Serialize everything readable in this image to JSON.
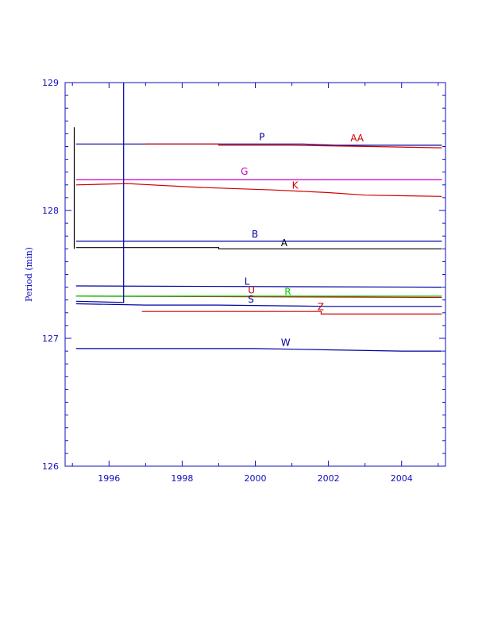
{
  "chart_data": {
    "type": "line",
    "title": "",
    "xlabel": "",
    "ylabel": "Period (min)",
    "xlim": [
      1994.8,
      2005.2
    ],
    "ylim": [
      126,
      129
    ],
    "x_ticks": [
      "1996",
      "1998",
      "2000",
      "2002",
      "2004"
    ],
    "y_ticks": [
      "126",
      "127",
      "128",
      "129"
    ],
    "grid": false,
    "legend": "none",
    "axis_color": "#1010c0",
    "series": [
      {
        "name": "P",
        "color": "#0000a0",
        "points": [
          [
            1995.1,
            128.52
          ],
          [
            2001.3,
            128.52
          ],
          [
            2002.2,
            128.51
          ],
          [
            2005.1,
            128.51
          ]
        ],
        "label_at": [
          2000.1,
          128.55
        ]
      },
      {
        "name": "AA",
        "color": "#d00000",
        "points": [
          [
            1997.0,
            128.52
          ],
          [
            1999.0,
            128.52
          ],
          [
            1999.0,
            128.51
          ],
          [
            2001.0,
            128.51
          ],
          [
            2003.2,
            128.5
          ],
          [
            2005.1,
            128.49
          ]
        ],
        "label_at": [
          2002.6,
          128.54
        ]
      },
      {
        "name": "G",
        "color": "#cc00cc",
        "points": [
          [
            1995.1,
            128.24
          ],
          [
            2005.1,
            128.24
          ]
        ],
        "label_at": [
          1999.6,
          128.28
        ]
      },
      {
        "name": "K",
        "color": "#d00000",
        "points": [
          [
            1995.1,
            128.2
          ],
          [
            1996.5,
            128.21
          ],
          [
            1998.5,
            128.18
          ],
          [
            2000.5,
            128.16
          ],
          [
            2002.0,
            128.14
          ],
          [
            2003.0,
            128.12
          ],
          [
            2005.1,
            128.11
          ]
        ],
        "label_at": [
          2001.0,
          128.17
        ]
      },
      {
        "name": "B",
        "color": "#0000a0",
        "points": [
          [
            1995.1,
            127.76
          ],
          [
            2005.1,
            127.76
          ]
        ],
        "label_at": [
          1999.9,
          127.79
        ]
      },
      {
        "name": "A",
        "color": "#000000",
        "points": [
          [
            1995.1,
            127.71
          ],
          [
            1999.0,
            127.71
          ],
          [
            1999.0,
            127.7
          ],
          [
            2005.1,
            127.7
          ]
        ],
        "label_at": [
          2000.7,
          127.72
        ]
      },
      {
        "name": "L",
        "color": "#0000a0",
        "points": [
          [
            1995.1,
            127.41
          ],
          [
            2005.1,
            127.4
          ]
        ],
        "label_at": [
          1999.7,
          127.42
        ]
      },
      {
        "name": "U",
        "color": "#d00000",
        "points": [
          [
            1995.1,
            127.33
          ],
          [
            2005.1,
            127.32
          ]
        ],
        "label_at": [
          1999.8,
          127.35
        ]
      },
      {
        "name": "R",
        "color": "#00cc00",
        "points": [
          [
            1995.1,
            127.33
          ],
          [
            2005.1,
            127.33
          ]
        ],
        "label_at": [
          2000.8,
          127.34
        ]
      },
      {
        "name": "S",
        "color": "#0000a0",
        "points": [
          [
            1995.1,
            127.27
          ],
          [
            1997.0,
            127.26
          ],
          [
            1999.0,
            127.26
          ],
          [
            2002.0,
            127.25
          ],
          [
            2005.1,
            127.25
          ]
        ],
        "label_at": [
          1999.8,
          127.28
        ]
      },
      {
        "name": "Z",
        "color": "#d00000",
        "points": [
          [
            1996.9,
            127.21
          ],
          [
            2001.8,
            127.21
          ],
          [
            2001.8,
            127.19
          ],
          [
            2005.1,
            127.19
          ]
        ],
        "label_at": [
          2001.7,
          127.22
        ]
      },
      {
        "name": "W",
        "color": "#0000a0",
        "points": [
          [
            1995.1,
            126.92
          ],
          [
            1998.0,
            126.92
          ],
          [
            2000.0,
            126.92
          ],
          [
            2002.0,
            126.91
          ],
          [
            2004.0,
            126.9
          ],
          [
            2005.1,
            126.9
          ]
        ],
        "label_at": [
          2000.7,
          126.94
        ]
      },
      {
        "name": "",
        "color": "#0000a0",
        "points": [
          [
            1995.1,
            127.29
          ],
          [
            1996.4,
            127.28
          ],
          [
            1996.4,
            129.0
          ]
        ]
      },
      {
        "name": "",
        "color": "#000000",
        "points": [
          [
            1995.05,
            127.7
          ],
          [
            1995.05,
            128.65
          ]
        ]
      }
    ]
  }
}
